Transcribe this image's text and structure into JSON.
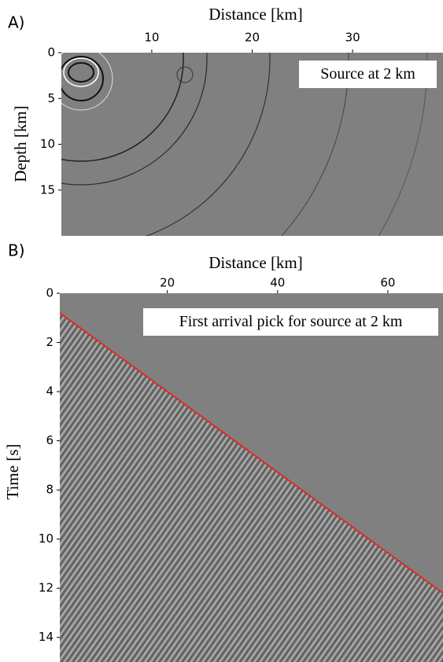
{
  "chart_data": [
    {
      "type": "image",
      "panel_label": "A)",
      "x_label": "Distance [km]",
      "y_label": "Depth [km]",
      "annotation": "Source at 2 km",
      "xlim": [
        1,
        39
      ],
      "xticks": [
        10,
        20,
        30
      ],
      "ylim": [
        0,
        20
      ],
      "yticks": [
        0,
        5,
        10,
        15
      ],
      "y_inverted": true
    },
    {
      "type": "line",
      "panel_label": "B)",
      "x_label": "Distance [km]",
      "y_label": "Time [s]",
      "annotation": "First arrival pick for source at 2 km",
      "x": [
        0.5,
        70
      ],
      "series": [
        {
          "color": "#e8231f",
          "values": [
            0.8,
            12.2
          ]
        }
      ],
      "xlim": [
        0.5,
        70
      ],
      "xticks": [
        20,
        40,
        60
      ],
      "ylim": [
        0,
        15
      ],
      "yticks": [
        0,
        2,
        4,
        6,
        8,
        10,
        12,
        14
      ],
      "y_inverted": true
    }
  ]
}
